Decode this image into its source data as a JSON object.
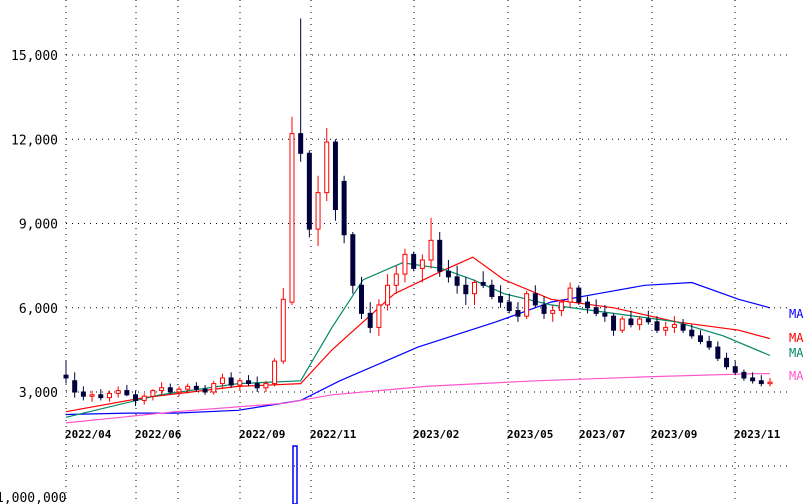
{
  "chart_data": {
    "type": "candlestick",
    "title": "",
    "y_ticks": [
      {
        "value": 3000,
        "label": "3,000"
      },
      {
        "value": 6000,
        "label": "6,000"
      },
      {
        "value": 9000,
        "label": "9,000"
      },
      {
        "value": 12000,
        "label": "12,000"
      },
      {
        "value": 15000,
        "label": "15,000"
      }
    ],
    "ylim": [
      1500,
      16500
    ],
    "x_ticks": [
      "2022/04",
      "2022/06",
      "2022/09",
      "2022/11",
      "2023/02",
      "2023/05",
      "2023/07",
      "2023/09",
      "2023/11"
    ],
    "volume_label": "1,000,000",
    "grid": true,
    "colors": {
      "up": "#ff0000",
      "down": "#00003c",
      "ma_blue": "#0000ff",
      "ma_red": "#ff0000",
      "ma_teal": "#008866",
      "ma_pink": "#ff55cc"
    },
    "moving_averages": [
      {
        "label": "MA",
        "color": "#0000ff",
        "points": [
          [
            0,
            2200
          ],
          [
            8,
            2250
          ],
          [
            14,
            2250
          ],
          [
            22,
            2350
          ],
          [
            30,
            2700
          ],
          [
            35,
            3400
          ],
          [
            45,
            4600
          ],
          [
            55,
            5500
          ],
          [
            62,
            6200
          ],
          [
            68,
            6500
          ],
          [
            74,
            6800
          ],
          [
            80,
            6900
          ],
          [
            86,
            6300
          ],
          [
            90,
            6000
          ]
        ]
      },
      {
        "label": "MA",
        "color": "#ff0000",
        "points": [
          [
            0,
            2300
          ],
          [
            10,
            2800
          ],
          [
            22,
            3200
          ],
          [
            30,
            3300
          ],
          [
            34,
            4500
          ],
          [
            36,
            5000
          ],
          [
            42,
            6500
          ],
          [
            48,
            7300
          ],
          [
            52,
            7800
          ],
          [
            56,
            7000
          ],
          [
            62,
            6300
          ],
          [
            70,
            6000
          ],
          [
            78,
            5500
          ],
          [
            86,
            5200
          ],
          [
            90,
            4900
          ]
        ]
      },
      {
        "label": "MA",
        "color": "#008866",
        "points": [
          [
            0,
            2100
          ],
          [
            12,
            2900
          ],
          [
            22,
            3300
          ],
          [
            30,
            3400
          ],
          [
            34,
            5300
          ],
          [
            38,
            7000
          ],
          [
            43,
            7600
          ],
          [
            48,
            7400
          ],
          [
            52,
            7000
          ],
          [
            56,
            6500
          ],
          [
            62,
            6100
          ],
          [
            70,
            5800
          ],
          [
            78,
            5500
          ],
          [
            84,
            5000
          ],
          [
            90,
            4300
          ]
        ]
      },
      {
        "label": "MA",
        "color": "#ff55cc",
        "points": [
          [
            0,
            1900
          ],
          [
            14,
            2300
          ],
          [
            28,
            2600
          ],
          [
            34,
            2900
          ],
          [
            46,
            3200
          ],
          [
            60,
            3400
          ],
          [
            75,
            3550
          ],
          [
            88,
            3650
          ],
          [
            90,
            3650
          ]
        ]
      }
    ],
    "candles": [
      [
        3600,
        4100,
        3300,
        3500
      ],
      [
        3400,
        3700,
        2800,
        3000
      ],
      [
        3000,
        3200,
        2700,
        2850
      ],
      [
        2850,
        3050,
        2650,
        2900
      ],
      [
        2900,
        3100,
        2700,
        2800
      ],
      [
        2800,
        3050,
        2650,
        2950
      ],
      [
        2950,
        3200,
        2800,
        3050
      ],
      [
        3050,
        3250,
        2850,
        2900
      ],
      [
        2900,
        3050,
        2500,
        2700
      ],
      [
        2700,
        2950,
        2550,
        2850
      ],
      [
        2850,
        3100,
        2700,
        3050
      ],
      [
        3050,
        3350,
        2900,
        3150
      ],
      [
        3150,
        3300,
        2950,
        3000
      ],
      [
        3000,
        3200,
        2850,
        3100
      ],
      [
        3100,
        3300,
        2950,
        3200
      ],
      [
        3200,
        3350,
        3000,
        3100
      ],
      [
        3100,
        3250,
        2900,
        3000
      ],
      [
        3000,
        3400,
        2900,
        3300
      ],
      [
        3300,
        3650,
        3100,
        3500
      ],
      [
        3500,
        3700,
        3150,
        3250
      ],
      [
        3250,
        3500,
        3050,
        3400
      ],
      [
        3400,
        3600,
        3200,
        3300
      ],
      [
        3300,
        3550,
        3000,
        3150
      ],
      [
        3150,
        3400,
        3000,
        3300
      ],
      [
        3300,
        4200,
        3200,
        4100
      ],
      [
        4100,
        6700,
        4000,
        6300
      ],
      [
        6200,
        12800,
        6100,
        12200
      ],
      [
        12200,
        16300,
        11200,
        11500
      ],
      [
        11500,
        11600,
        8500,
        8800
      ],
      [
        8800,
        10700,
        8200,
        10100
      ],
      [
        10100,
        12400,
        9800,
        11900
      ],
      [
        11900,
        12000,
        9100,
        9500
      ],
      [
        10500,
        10700,
        8300,
        8600
      ],
      [
        8600,
        8700,
        6500,
        6800
      ],
      [
        6800,
        7100,
        5600,
        5800
      ],
      [
        5800,
        6200,
        5100,
        5300
      ],
      [
        5300,
        6300,
        5000,
        6100
      ],
      [
        6100,
        7200,
        5900,
        6800
      ],
      [
        6800,
        7500,
        6500,
        7200
      ],
      [
        7200,
        8100,
        6900,
        7900
      ],
      [
        7900,
        8000,
        7300,
        7400
      ],
      [
        7400,
        7900,
        6900,
        7700
      ],
      [
        7700,
        9200,
        7400,
        8400
      ],
      [
        8400,
        8700,
        7100,
        7300
      ],
      [
        7300,
        7700,
        6900,
        7100
      ],
      [
        7100,
        7500,
        6500,
        6800
      ],
      [
        6800,
        7100,
        6100,
        6500
      ],
      [
        6500,
        7000,
        6100,
        6900
      ],
      [
        6900,
        7300,
        6700,
        6800
      ],
      [
        6800,
        7000,
        6300,
        6400
      ],
      [
        6400,
        6800,
        6000,
        6200
      ],
      [
        6200,
        6500,
        5800,
        5900
      ],
      [
        5900,
        6200,
        5500,
        5700
      ],
      [
        5700,
        6600,
        5600,
        6500
      ],
      [
        6500,
        6800,
        6000,
        6100
      ],
      [
        6100,
        6400,
        5600,
        5800
      ],
      [
        5800,
        6100,
        5500,
        5900
      ],
      [
        5900,
        6300,
        5700,
        6200
      ],
      [
        6200,
        6900,
        6000,
        6700
      ],
      [
        6700,
        6800,
        6100,
        6200
      ],
      [
        6200,
        6400,
        5800,
        6000
      ],
      [
        6000,
        6300,
        5700,
        5800
      ],
      [
        5800,
        6100,
        5500,
        5700
      ],
      [
        5700,
        5800,
        5000,
        5200
      ],
      [
        5200,
        5700,
        5100,
        5600
      ],
      [
        5600,
        5900,
        5300,
        5400
      ],
      [
        5400,
        5700,
        5200,
        5600
      ],
      [
        5600,
        5900,
        5400,
        5500
      ],
      [
        5500,
        5700,
        5100,
        5200
      ],
      [
        5200,
        5500,
        5000,
        5300
      ],
      [
        5300,
        5700,
        5100,
        5400
      ],
      [
        5400,
        5600,
        5100,
        5200
      ],
      [
        5200,
        5400,
        4900,
        5000
      ],
      [
        5000,
        5200,
        4700,
        4800
      ],
      [
        4800,
        5000,
        4500,
        4600
      ],
      [
        4600,
        4800,
        4100,
        4200
      ],
      [
        4200,
        4400,
        3800,
        3900
      ],
      [
        3900,
        4100,
        3600,
        3700
      ],
      [
        3700,
        3800,
        3400,
        3500
      ],
      [
        3500,
        3700,
        3300,
        3400
      ],
      [
        3400,
        3600,
        3200,
        3300
      ],
      [
        3300,
        3500,
        3200,
        3350
      ]
    ]
  }
}
